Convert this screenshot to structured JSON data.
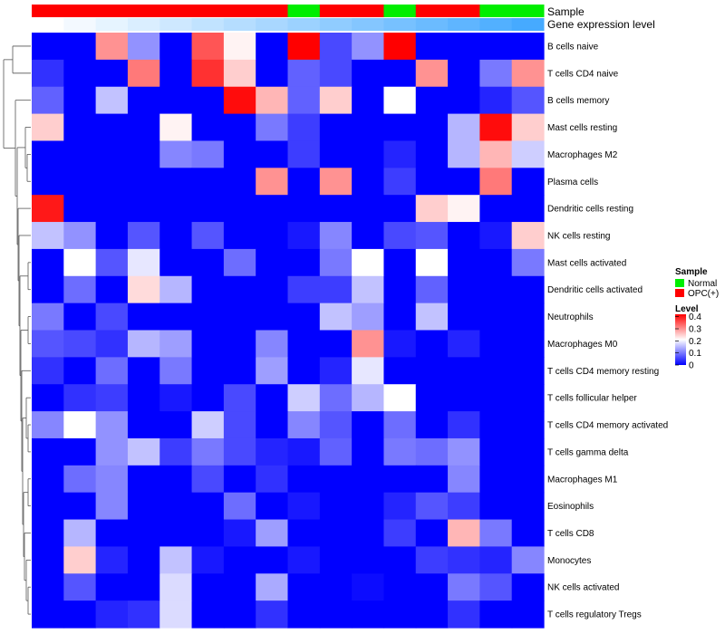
{
  "chart_data": {
    "type": "heatmap",
    "annotation_labels": {
      "sample": "Sample",
      "level": "Gene expression level"
    },
    "columns": 16,
    "sample_groups": [
      "OPC(+)",
      "OPC(+)",
      "OPC(+)",
      "OPC(+)",
      "OPC(+)",
      "OPC(+)",
      "OPC(+)",
      "OPC(+)",
      "Normal",
      "OPC(+)",
      "OPC(+)",
      "Normal",
      "OPC(+)",
      "OPC(+)",
      "Normal",
      "Normal"
    ],
    "row_labels": [
      "B cells naive",
      "T cells CD4 naive",
      "B cells memory",
      "Mast cells resting",
      "Macrophages M2",
      "Plasma cells",
      "Dendritic cells resting",
      "NK cells resting",
      "Mast cells activated",
      "Dendritic cells activated",
      "Neutrophils",
      "Macrophages M0",
      "T cells CD4 memory resting",
      "T cells follicular helper",
      "T cells CD4 memory activated",
      "T cells gamma delta",
      "Macrophages M1",
      "Eosinophils",
      "T cells CD8",
      "Monocytes",
      "NK cells activated",
      "T cells regulatory  Tregs"
    ],
    "values": [
      [
        0.0,
        0.0,
        0.3,
        0.12,
        0.0,
        0.35,
        0.22,
        0.0,
        0.42,
        0.06,
        0.12,
        0.42,
        0.0,
        0.0,
        0.0,
        0.0
      ],
      [
        0.04,
        0.0,
        0.0,
        0.32,
        0.0,
        0.38,
        0.25,
        0.0,
        0.08,
        0.06,
        0.0,
        0.0,
        0.3,
        0.0,
        0.1,
        0.3
      ],
      [
        0.08,
        0.0,
        0.16,
        0.0,
        0.0,
        0.0,
        0.41,
        0.27,
        0.08,
        0.25,
        0.0,
        0.21,
        0.0,
        0.0,
        0.03,
        0.07
      ],
      [
        0.25,
        0.0,
        0.0,
        0.0,
        0.22,
        0.0,
        0.0,
        0.1,
        0.05,
        0.0,
        0.0,
        0.0,
        0.0,
        0.15,
        0.41,
        0.25
      ],
      [
        0.0,
        0.0,
        0.0,
        0.0,
        0.11,
        0.1,
        0.0,
        0.0,
        0.05,
        0.0,
        0.0,
        0.03,
        0.0,
        0.15,
        0.27,
        0.17
      ],
      [
        0.0,
        0.0,
        0.0,
        0.0,
        0.0,
        0.0,
        0.0,
        0.3,
        0.0,
        0.3,
        0.0,
        0.05,
        0.0,
        0.0,
        0.32,
        0.0
      ],
      [
        0.4,
        0.0,
        0.0,
        0.0,
        0.0,
        0.0,
        0.0,
        0.0,
        0.0,
        0.0,
        0.0,
        0.0,
        0.25,
        0.22,
        0.0,
        0.0
      ],
      [
        0.16,
        0.12,
        0.0,
        0.07,
        0.0,
        0.07,
        0.0,
        0.0,
        0.02,
        0.11,
        0.0,
        0.06,
        0.07,
        0.0,
        0.02,
        0.25
      ],
      [
        0.0,
        0.21,
        0.07,
        0.19,
        0.0,
        0.0,
        0.09,
        0.0,
        0.0,
        0.1,
        0.21,
        0.0,
        0.21,
        0.0,
        0.0,
        0.1
      ],
      [
        0.0,
        0.09,
        0.0,
        0.24,
        0.15,
        0.0,
        0.0,
        0.0,
        0.05,
        0.05,
        0.16,
        0.0,
        0.08,
        0.0,
        0.0,
        0.0
      ],
      [
        0.1,
        0.0,
        0.06,
        0.0,
        0.0,
        0.0,
        0.0,
        0.0,
        0.0,
        0.16,
        0.13,
        0.0,
        0.16,
        0.0,
        0.0,
        0.0
      ],
      [
        0.07,
        0.06,
        0.04,
        0.15,
        0.13,
        0.0,
        0.0,
        0.11,
        0.0,
        0.0,
        0.3,
        0.02,
        0.0,
        0.03,
        0.0,
        0.0
      ],
      [
        0.04,
        0.0,
        0.09,
        0.0,
        0.1,
        0.0,
        0.0,
        0.13,
        0.0,
        0.03,
        0.19,
        0.0,
        0.0,
        0.0,
        0.0,
        0.0
      ],
      [
        0.0,
        0.04,
        0.05,
        0.0,
        0.02,
        0.0,
        0.06,
        0.0,
        0.17,
        0.09,
        0.15,
        0.21,
        0.0,
        0.0,
        0.0,
        0.0
      ],
      [
        0.11,
        0.21,
        0.12,
        0.0,
        0.0,
        0.17,
        0.06,
        0.0,
        0.11,
        0.07,
        0.0,
        0.09,
        0.0,
        0.04,
        0.0,
        0.0
      ],
      [
        0.0,
        0.0,
        0.12,
        0.16,
        0.05,
        0.1,
        0.06,
        0.03,
        0.02,
        0.08,
        0.0,
        0.1,
        0.09,
        0.12,
        0.0,
        0.0
      ],
      [
        0.0,
        0.09,
        0.11,
        0.0,
        0.0,
        0.06,
        0.0,
        0.04,
        0.0,
        0.0,
        0.0,
        0.0,
        0.0,
        0.11,
        0.0,
        0.0
      ],
      [
        0.0,
        0.0,
        0.11,
        0.0,
        0.0,
        0.0,
        0.09,
        0.0,
        0.02,
        0.0,
        0.0,
        0.03,
        0.07,
        0.05,
        0.0,
        0.0
      ],
      [
        0.0,
        0.15,
        0.0,
        0.0,
        0.0,
        0.0,
        0.02,
        0.13,
        0.0,
        0.0,
        0.0,
        0.05,
        0.0,
        0.27,
        0.1,
        0.0
      ],
      [
        0.0,
        0.25,
        0.03,
        0.0,
        0.16,
        0.02,
        0.0,
        0.0,
        0.02,
        0.0,
        0.0,
        0.0,
        0.05,
        0.04,
        0.03,
        0.11
      ],
      [
        0.0,
        0.07,
        0.0,
        0.0,
        0.18,
        0.0,
        0.0,
        0.14,
        0.0,
        0.0,
        0.01,
        0.0,
        0.0,
        0.1,
        0.07,
        0.0
      ],
      [
        0.0,
        0.0,
        0.03,
        0.04,
        0.18,
        0.0,
        0.0,
        0.04,
        0.0,
        0.0,
        0.0,
        0.0,
        0.0,
        0.04,
        0.0,
        0.0
      ]
    ],
    "legend_sample": {
      "title": "Sample",
      "items": [
        {
          "name": "Normal",
          "color": "#00ee00"
        },
        {
          "name": "OPC(+)",
          "color": "#ff0000"
        }
      ]
    },
    "legend_level": {
      "title": "Level",
      "ticks": [
        "0.4",
        "0.3",
        "0.2",
        "0.1",
        "0"
      ],
      "tick_values": [
        0.4,
        0.3,
        0.2,
        0.1,
        0.0
      ],
      "range": [
        0,
        0.42
      ]
    },
    "color_scale": {
      "low": "#0000ff",
      "mid": "#ffffff",
      "high": "#ff0000",
      "mid_value": 0.21
    }
  }
}
